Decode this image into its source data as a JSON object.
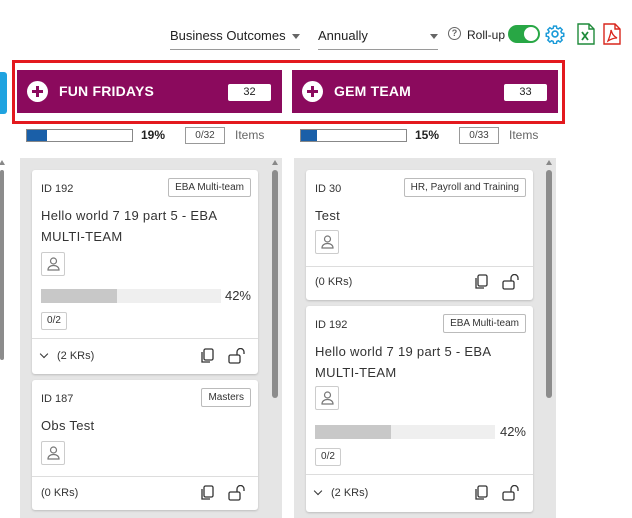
{
  "toolbar": {
    "dropdown_outcomes": "Business Outcomes",
    "dropdown_period": "Annually",
    "help_icon": "?",
    "rollup_label": "Roll-up",
    "rollup_on": true,
    "icons": [
      "gear-icon",
      "excel-icon",
      "pdf-icon"
    ],
    "accent_green": "#28a745",
    "accent_blue": "#1fa3e0"
  },
  "columns": [
    {
      "title": "FUN FRIDAYS",
      "count": "32",
      "progress_pct_label": "19%",
      "progress_fraction": 0.19,
      "progress_count": "0/32",
      "items_label": "Items",
      "cards": [
        {
          "id": "ID 192",
          "tag": "EBA Multi-team",
          "title": "Hello world 7 19 part 5 - EBA MULTI-TEAM",
          "kr_pct_label": "42%",
          "kr_fraction": 0.42,
          "kr_count": "0/2",
          "footer": "(2 KRs)"
        },
        {
          "id": "ID 187",
          "tag": "Masters",
          "title": "Obs Test",
          "footer": "(0 KRs)"
        }
      ]
    },
    {
      "title": "GEM TEAM",
      "count": "33",
      "progress_pct_label": "15%",
      "progress_fraction": 0.15,
      "progress_count": "0/33",
      "items_label": "Items",
      "cards": [
        {
          "id": "ID 30",
          "tag": "HR, Payroll and Training",
          "title": "Test",
          "footer": "(0 KRs)"
        },
        {
          "id": "ID 192",
          "tag": "EBA Multi-team",
          "title": "Hello world 7 19 part 5 - EBA MULTI-TEAM",
          "kr_pct_label": "42%",
          "kr_fraction": 0.42,
          "kr_count": "0/2",
          "footer": "(2 KRs)"
        }
      ]
    }
  ],
  "colors": {
    "header_bg": "#8b0a5d",
    "highlight": "#e3191e",
    "progress_fill": "#1a5fa8"
  }
}
